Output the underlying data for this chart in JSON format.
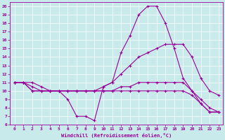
{
  "background_color": "#c8eaea",
  "line_color": "#990099",
  "xlabel": "Windchill (Refroidissement éolien,°C)",
  "xlim": [
    -0.5,
    23.5
  ],
  "ylim": [
    6,
    20.5
  ],
  "yticks": [
    6,
    7,
    8,
    9,
    10,
    11,
    12,
    13,
    14,
    15,
    16,
    17,
    18,
    19,
    20
  ],
  "xticks": [
    0,
    1,
    2,
    3,
    4,
    5,
    6,
    7,
    8,
    9,
    10,
    11,
    12,
    13,
    14,
    15,
    16,
    17,
    18,
    19,
    20,
    21,
    22,
    23
  ],
  "series": [
    {
      "x": [
        0,
        1,
        2,
        3,
        4,
        5,
        6,
        7,
        8,
        9,
        10,
        11,
        12,
        13,
        14,
        15,
        16,
        17,
        18,
        19,
        20,
        21,
        22,
        23
      ],
      "y": [
        11,
        11,
        10.5,
        10,
        10,
        10,
        9,
        7,
        7,
        6.5,
        10.5,
        11,
        14.5,
        16.5,
        19,
        20,
        20,
        18,
        15,
        11.5,
        10,
        8.5,
        7.5,
        7.5
      ]
    },
    {
      "x": [
        0,
        1,
        2,
        3,
        4,
        5,
        6,
        7,
        8,
        9,
        10,
        11,
        12,
        13,
        14,
        15,
        16,
        17,
        18,
        19,
        20,
        21,
        22,
        23
      ],
      "y": [
        11,
        11,
        11,
        10.5,
        10,
        10,
        10,
        10,
        10,
        10,
        10.5,
        11,
        12,
        13,
        14,
        14.5,
        15,
        15.5,
        15.5,
        15.5,
        14,
        11.5,
        10,
        9.5
      ]
    },
    {
      "x": [
        0,
        1,
        2,
        3,
        4,
        5,
        6,
        7,
        8,
        9,
        10,
        11,
        12,
        13,
        14,
        15,
        16,
        17,
        18,
        19,
        20,
        21,
        22,
        23
      ],
      "y": [
        11,
        11,
        10,
        10,
        10,
        10,
        10,
        10,
        10,
        10,
        10,
        10,
        10.5,
        10.5,
        11,
        11,
        11,
        11,
        11,
        11,
        10,
        9,
        8,
        7.5
      ]
    },
    {
      "x": [
        0,
        1,
        2,
        3,
        4,
        5,
        6,
        7,
        8,
        9,
        10,
        11,
        12,
        13,
        14,
        15,
        16,
        17,
        18,
        19,
        20,
        21,
        22,
        23
      ],
      "y": [
        11,
        11,
        10,
        10,
        10,
        10,
        10,
        10,
        10,
        10,
        10,
        10,
        10,
        10,
        10,
        10,
        10,
        10,
        10,
        10,
        9.5,
        8.5,
        7.5,
        7.5
      ]
    }
  ]
}
